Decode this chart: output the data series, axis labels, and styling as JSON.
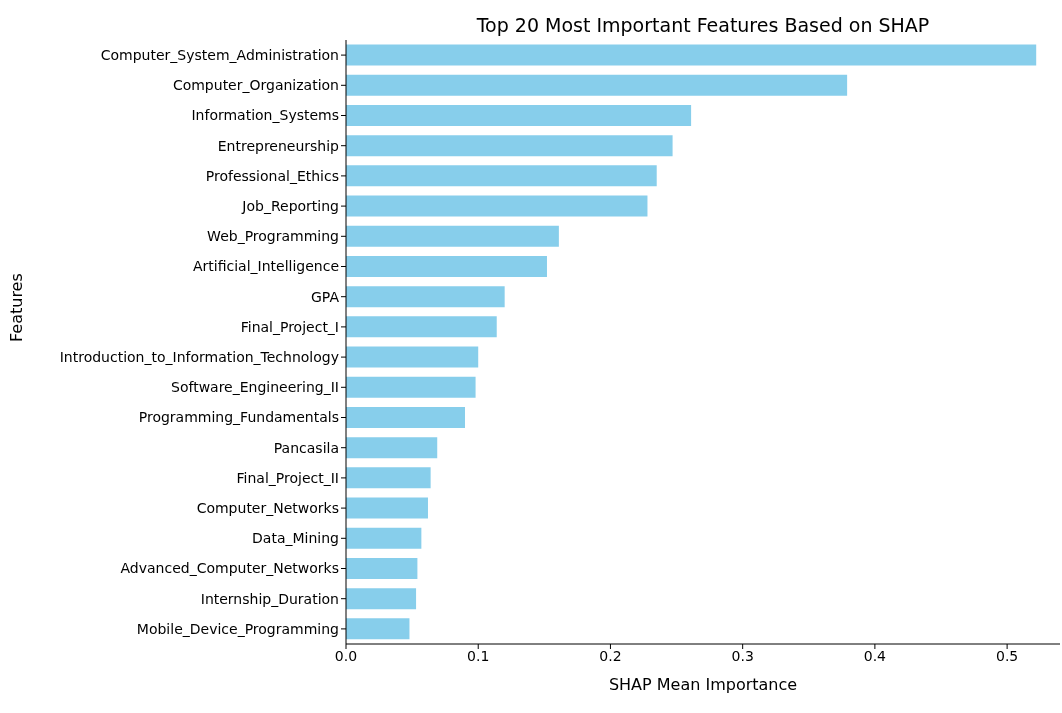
{
  "chart_data": {
    "type": "bar",
    "orientation": "horizontal",
    "title": "Top 20 Most Important Features Based on SHAP",
    "xlabel": "SHAP Mean Importance",
    "ylabel": "Features",
    "categories": [
      "Computer_System_Administration",
      "Computer_Organization",
      "Information_Systems",
      "Entrepreneurship",
      "Professional_Ethics",
      "Job_Reporting",
      "Web_Programming",
      "Artificial_Intelligence",
      "GPA",
      "Final_Project_I",
      "Introduction_to_Information_Technology",
      "Software_Engineering_II",
      "Programming_Fundamentals",
      "Pancasila",
      "Final_Project_II",
      "Computer_Networks",
      "Data_Mining",
      "Advanced_Computer_Networks",
      "Internship_Duration",
      "Mobile_Device_Programming"
    ],
    "values": [
      0.522,
      0.379,
      0.261,
      0.247,
      0.235,
      0.228,
      0.161,
      0.152,
      0.12,
      0.114,
      0.1,
      0.098,
      0.09,
      0.069,
      0.064,
      0.062,
      0.057,
      0.054,
      0.053,
      0.048
    ],
    "color": "#87ceeb",
    "xlim": [
      0,
      0.54
    ],
    "xticks": [
      {
        "value": 0,
        "label": "0.0"
      },
      0.1,
      0.2,
      0.3,
      0.4,
      0.5
    ],
    "grid": false
  }
}
